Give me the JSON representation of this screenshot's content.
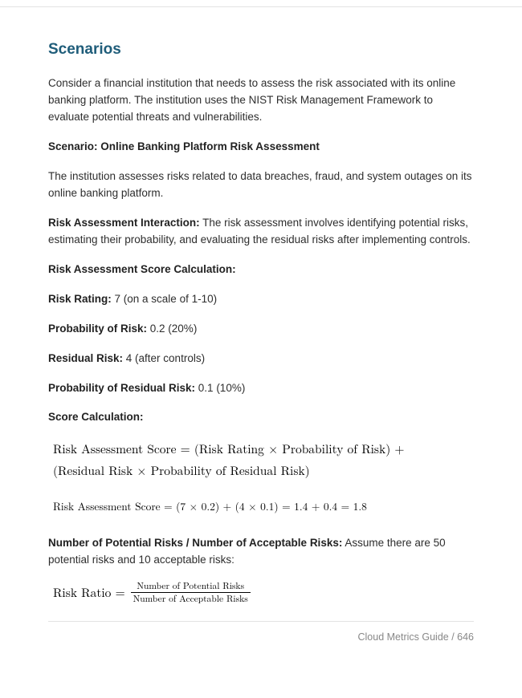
{
  "colors": {
    "heading": "#1f5d7a",
    "body_text": "#2e2e2e",
    "bold_text": "#222222",
    "rule": "#e3e3e3",
    "footer_text": "#888888",
    "formula_text": "#000000",
    "background": "#ffffff"
  },
  "typography": {
    "body_family": "Segoe UI / system sans",
    "body_size_pt": 10,
    "heading_size_pt": 14,
    "formula_family": "Latin Modern / CMU Serif",
    "formula_size_pt": 12,
    "formula_small_size_pt": 10
  },
  "heading": "Scenarios",
  "intro": "Consider a financial institution that needs to assess the risk associated with its online banking platform. The institution uses the NIST Risk Management Framework to evaluate potential threats and vulnerabilities.",
  "scenario_label": "Scenario: Online Banking Platform Risk Assessment",
  "scenario_desc": "The institution assesses risks related to data breaches, fraud, and system outages on its online banking platform.",
  "interaction_label": "Risk Assessment Interaction:",
  "interaction_desc": " The risk assessment involves identifying potential risks, estimating their probability, and evaluating the residual risks after implementing controls.",
  "score_calc_heading": "Risk Assessment Score Calculation:",
  "metrics": {
    "risk_rating_label": "Risk Rating:",
    "risk_rating_value": " 7 (on a scale of 1-10)",
    "prob_risk_label": "Probability of Risk:",
    "prob_risk_value": " 0.2 (20%)",
    "residual_label": "Residual Risk:",
    "residual_value": " 4 (after controls)",
    "prob_residual_label": "Probability of Residual Risk:",
    "prob_residual_value": " 0.1 (10%)"
  },
  "score_label": "Score Calculation:",
  "formula1_line1": "Risk Assessment Score = (Risk Rating × Probability of Risk) +",
  "formula1_line2": "(Residual Risk × Probability of Residual Risk)",
  "formula2": "Risk Assessment Score = (7 × 0.2) + (4 × 0.1) = 1.4 + 0.4 = 1.8",
  "ratio_label": "Number of Potential Risks / Number of Acceptable Risks:",
  "ratio_desc": " Assume there are 50 potential risks and 10 acceptable risks:",
  "risk_ratio_lhs": "Risk Ratio =",
  "risk_ratio_num": "Number of Potential Risks",
  "risk_ratio_den": "Number of Acceptable Risks",
  "footer": "Cloud Metrics Guide / 646"
}
